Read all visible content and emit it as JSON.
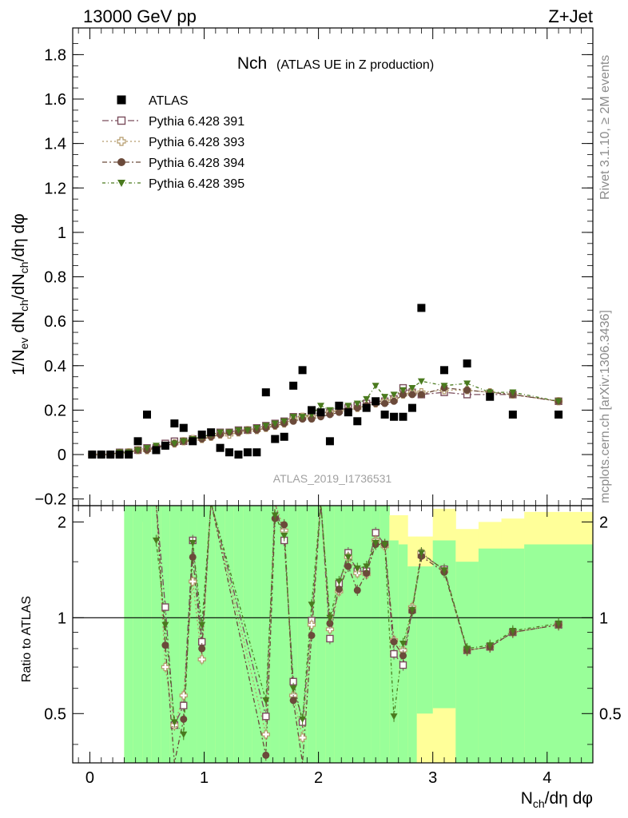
{
  "header": {
    "energy_label": "13000 GeV pp",
    "process_label": "Z+Jet"
  },
  "side_labels": {
    "rivet": "Rivet 3.1.10, ≥ 2M events",
    "mcplots": "mcplots.cern.ch [arXiv:1306.3436]"
  },
  "chart_data": [
    {
      "id": "main",
      "type": "scatter",
      "title_main": "Nch",
      "title_sub": "(ATLAS UE in Z production)",
      "watermark": "ATLAS_2019_I1736531",
      "ylabel": "1/N_ev dN_ch/dη dφ",
      "xlim": [
        -0.15,
        4.4
      ],
      "ylim": [
        -0.23,
        1.92
      ],
      "xticks": [
        0,
        1,
        2,
        3,
        4
      ],
      "yticks": [
        -0.2,
        0,
        0.2,
        0.4,
        0.6,
        0.8,
        1,
        1.2,
        1.4,
        1.6,
        1.8
      ],
      "ytick_labels": [
        "−0.2",
        "0",
        "0.2",
        "0.4",
        "0.6",
        "0.8",
        "1",
        "1.2",
        "1.4",
        "1.6",
        "1.8"
      ],
      "legend_position": "top-left",
      "series": [
        {
          "name": "ATLAS",
          "marker": "filled-square",
          "color": "#000000",
          "x": [
            0.02,
            0.1,
            0.18,
            0.26,
            0.34,
            0.42,
            0.5,
            0.58,
            0.66,
            0.74,
            0.82,
            0.9,
            0.98,
            1.06,
            1.14,
            1.22,
            1.3,
            1.38,
            1.46,
            1.54,
            1.62,
            1.7,
            1.78,
            1.86,
            1.94,
            2.02,
            2.1,
            2.18,
            2.26,
            2.34,
            2.42,
            2.5,
            2.58,
            2.66,
            2.74,
            2.82,
            2.9,
            3.1,
            3.3,
            3.5,
            3.7,
            4.1
          ],
          "y": [
            0.0,
            0.0,
            0.0,
            0.0,
            0.0,
            0.06,
            0.18,
            0.02,
            0.04,
            0.14,
            0.12,
            0.06,
            0.09,
            0.1,
            0.03,
            0.01,
            0.0,
            0.01,
            0.01,
            0.28,
            0.07,
            0.08,
            0.31,
            0.38,
            0.2,
            0.19,
            0.06,
            0.22,
            0.19,
            0.15,
            0.21,
            0.24,
            0.18,
            0.17,
            0.17,
            0.21,
            0.66,
            0.38,
            0.41,
            0.26,
            0.18,
            0.18
          ]
        },
        {
          "name": "Pythia 6.428 391",
          "marker": "open-square",
          "color": "#7a4d5c",
          "dash": "8,3,2,3",
          "x": [
            0.02,
            0.1,
            0.18,
            0.26,
            0.34,
            0.42,
            0.5,
            0.58,
            0.66,
            0.74,
            0.82,
            0.9,
            0.98,
            1.06,
            1.14,
            1.22,
            1.3,
            1.38,
            1.46,
            1.54,
            1.62,
            1.7,
            1.78,
            1.86,
            1.94,
            2.02,
            2.1,
            2.18,
            2.26,
            2.34,
            2.42,
            2.5,
            2.58,
            2.66,
            2.74,
            2.82,
            2.9,
            3.1,
            3.3,
            3.5,
            3.7,
            4.1
          ],
          "y": [
            0.0,
            0.0,
            0.0,
            0.01,
            0.01,
            0.02,
            0.03,
            0.03,
            0.05,
            0.06,
            0.06,
            0.07,
            0.08,
            0.09,
            0.1,
            0.1,
            0.11,
            0.11,
            0.12,
            0.13,
            0.14,
            0.15,
            0.17,
            0.17,
            0.18,
            0.19,
            0.19,
            0.2,
            0.21,
            0.22,
            0.23,
            0.24,
            0.24,
            0.25,
            0.3,
            0.28,
            0.27,
            0.28,
            0.27,
            0.27,
            0.27,
            0.24
          ]
        },
        {
          "name": "Pythia 6.428 393",
          "marker": "open-cross",
          "color": "#b39a6b",
          "dash": "2,3",
          "x": [
            0.02,
            0.1,
            0.18,
            0.26,
            0.34,
            0.42,
            0.5,
            0.58,
            0.66,
            0.74,
            0.82,
            0.9,
            0.98,
            1.06,
            1.14,
            1.22,
            1.3,
            1.38,
            1.46,
            1.54,
            1.62,
            1.7,
            1.78,
            1.86,
            1.94,
            2.02,
            2.1,
            2.18,
            2.26,
            2.34,
            2.42,
            2.5,
            2.58,
            2.66,
            2.74,
            2.82,
            2.9,
            3.1,
            3.3,
            3.5,
            3.7,
            4.1
          ],
          "y": [
            0.0,
            0.0,
            0.0,
            0.0,
            0.01,
            0.02,
            0.02,
            0.03,
            0.04,
            0.05,
            0.06,
            0.07,
            0.07,
            0.08,
            0.09,
            0.09,
            0.1,
            0.11,
            0.11,
            0.12,
            0.13,
            0.14,
            0.16,
            0.17,
            0.17,
            0.18,
            0.19,
            0.2,
            0.2,
            0.21,
            0.22,
            0.23,
            0.24,
            0.25,
            0.27,
            0.28,
            0.28,
            0.29,
            0.29,
            0.28,
            0.27,
            0.24
          ]
        },
        {
          "name": "Pythia 6.428 394",
          "marker": "filled-circle",
          "color": "#6b4a3a",
          "dash": "6,3,2,3",
          "x": [
            0.02,
            0.1,
            0.18,
            0.26,
            0.34,
            0.42,
            0.5,
            0.58,
            0.66,
            0.74,
            0.82,
            0.9,
            0.98,
            1.06,
            1.14,
            1.22,
            1.3,
            1.38,
            1.46,
            1.54,
            1.62,
            1.7,
            1.78,
            1.86,
            1.94,
            2.02,
            2.1,
            2.18,
            2.26,
            2.34,
            2.42,
            2.5,
            2.58,
            2.66,
            2.74,
            2.82,
            2.9,
            3.1,
            3.3,
            3.5,
            3.7,
            4.1
          ],
          "y": [
            0.0,
            0.0,
            0.0,
            0.01,
            0.01,
            0.02,
            0.02,
            0.03,
            0.04,
            0.05,
            0.06,
            0.06,
            0.07,
            0.08,
            0.09,
            0.1,
            0.1,
            0.11,
            0.11,
            0.12,
            0.13,
            0.14,
            0.15,
            0.16,
            0.16,
            0.17,
            0.18,
            0.19,
            0.2,
            0.21,
            0.22,
            0.23,
            0.23,
            0.24,
            0.27,
            0.27,
            0.27,
            0.3,
            0.29,
            0.28,
            0.27,
            0.24
          ]
        },
        {
          "name": "Pythia 6.428 395",
          "marker": "filled-triangle-down",
          "color": "#4a7a1e",
          "dash": "4,3,1,3",
          "x": [
            0.02,
            0.1,
            0.18,
            0.26,
            0.34,
            0.42,
            0.5,
            0.58,
            0.66,
            0.74,
            0.82,
            0.9,
            0.98,
            1.06,
            1.14,
            1.22,
            1.3,
            1.38,
            1.46,
            1.54,
            1.62,
            1.7,
            1.78,
            1.86,
            1.94,
            2.02,
            2.1,
            2.18,
            2.26,
            2.34,
            2.42,
            2.5,
            2.58,
            2.66,
            2.74,
            2.82,
            2.9,
            3.1,
            3.3,
            3.5,
            3.7,
            4.1
          ],
          "y": [
            0.0,
            0.0,
            0.0,
            0.01,
            0.01,
            0.02,
            0.03,
            0.04,
            0.04,
            0.05,
            0.06,
            0.07,
            0.08,
            0.09,
            0.1,
            0.1,
            0.11,
            0.11,
            0.12,
            0.13,
            0.14,
            0.15,
            0.17,
            0.17,
            0.18,
            0.22,
            0.2,
            0.22,
            0.22,
            0.23,
            0.25,
            0.31,
            0.26,
            0.27,
            0.29,
            0.3,
            0.33,
            0.31,
            0.32,
            0.28,
            0.28,
            0.24
          ]
        }
      ]
    },
    {
      "id": "ratio",
      "type": "line",
      "ylabel": "Ratio to ATLAS",
      "xlabel": "N_ch/dη dφ",
      "xlim": [
        -0.15,
        4.4
      ],
      "ylim": [
        0.35,
        2.25
      ],
      "reference_line": 1,
      "yticks": [
        0.5,
        1,
        2
      ],
      "ytick_labels": [
        "0.5",
        "1",
        "2"
      ],
      "xticks": [
        0,
        1,
        2,
        3,
        4
      ],
      "xtick_labels": [
        "0",
        "1",
        "2",
        "3",
        "4"
      ],
      "bands": {
        "edges": [
          0.3,
          0.38,
          0.46,
          0.54,
          0.62,
          0.7,
          0.78,
          0.86,
          0.94,
          1.02,
          1.1,
          1.18,
          1.26,
          1.34,
          1.42,
          1.5,
          1.58,
          1.66,
          1.74,
          1.82,
          1.9,
          1.98,
          2.06,
          2.14,
          2.22,
          2.3,
          2.38,
          2.46,
          2.54,
          2.62,
          2.7,
          2.78,
          2.86,
          3.0,
          3.2,
          3.4,
          3.6,
          3.8,
          4.4
        ],
        "yellow_lo": [
          0.35,
          0.35,
          0.35,
          0.35,
          0.35,
          0.35,
          0.35,
          0.35,
          0.35,
          0.35,
          0.35,
          0.35,
          0.35,
          0.35,
          0.35,
          0.35,
          0.35,
          0.35,
          0.35,
          0.35,
          0.35,
          0.35,
          0.35,
          0.35,
          0.35,
          0.35,
          0.35,
          0.35,
          0.35,
          0.35,
          0.35,
          0.35,
          0.35,
          0.35,
          0.35,
          0.35,
          0.35,
          0.35
        ],
        "yellow_hi": [
          2.05,
          2.25,
          2.0,
          2.25,
          2.25,
          2.25,
          2.05,
          2.25,
          2.25,
          2.1,
          2.25,
          2.25,
          2.25,
          2.25,
          2.25,
          2.25,
          2.25,
          2.25,
          2.25,
          2.25,
          2.25,
          2.25,
          2.25,
          2.25,
          2.25,
          2.25,
          2.25,
          2.25,
          2.25,
          2.1,
          2.1,
          1.8,
          1.8,
          2.2,
          1.9,
          2.0,
          2.05,
          2.15
        ],
        "green_lo": [
          0.35,
          0.35,
          0.35,
          0.35,
          0.35,
          0.35,
          0.35,
          0.35,
          0.35,
          0.35,
          0.35,
          0.35,
          0.35,
          0.35,
          0.35,
          0.35,
          0.35,
          0.35,
          0.35,
          0.35,
          0.35,
          0.35,
          0.35,
          0.35,
          0.35,
          0.35,
          0.35,
          0.35,
          0.35,
          0.35,
          0.35,
          0.35,
          0.5,
          0.52,
          0.35,
          0.35,
          0.35,
          0.35
        ],
        "green_hi": [
          2.25,
          2.25,
          2.25,
          2.25,
          2.25,
          2.25,
          2.25,
          2.25,
          2.25,
          2.25,
          2.25,
          2.25,
          2.25,
          2.25,
          2.25,
          2.25,
          2.25,
          2.25,
          2.25,
          2.25,
          2.25,
          2.25,
          2.25,
          2.25,
          2.25,
          2.25,
          2.25,
          2.25,
          2.25,
          1.75,
          1.7,
          1.45,
          1.45,
          1.75,
          1.5,
          1.65,
          1.65,
          1.7
        ]
      },
      "series": [
        {
          "name": "Pythia 6.428 391",
          "x": [
            0.58,
            0.66,
            0.74,
            0.82,
            0.9,
            0.98,
            1.06,
            1.54,
            1.62,
            1.7,
            1.78,
            1.86,
            1.94,
            2.02,
            2.1,
            2.18,
            2.26,
            2.34,
            2.42,
            2.5,
            2.58,
            2.66,
            2.74,
            2.82,
            2.9,
            3.1,
            3.3,
            3.5,
            3.7,
            4.1
          ],
          "y": [
            2.3,
            1.08,
            0.46,
            0.53,
            1.75,
            0.84,
            2.3,
            0.49,
            2.3,
            1.75,
            0.63,
            0.47,
            0.98,
            2.3,
            0.86,
            1.28,
            1.6,
            1.4,
            1.4,
            1.85,
            1.7,
            0.77,
            0.71,
            1.06,
            1.58,
            1.42,
            0.79,
            0.81,
            0.9,
            0.95
          ]
        },
        {
          "name": "Pythia 6.428 393",
          "x": [
            0.58,
            0.66,
            0.74,
            0.82,
            0.9,
            0.98,
            1.06,
            1.54,
            1.62,
            1.7,
            1.78,
            1.86,
            1.94,
            2.02,
            2.1,
            2.18,
            2.26,
            2.34,
            2.42,
            2.5,
            2.58,
            2.66,
            2.74,
            2.82,
            2.9,
            3.1,
            3.3,
            3.5,
            3.7,
            4.1
          ],
          "y": [
            2.3,
            0.7,
            0.46,
            0.57,
            1.3,
            0.74,
            2.3,
            0.43,
            2.3,
            1.88,
            0.57,
            0.42,
            0.95,
            2.3,
            0.92,
            1.21,
            1.55,
            1.38,
            1.37,
            1.75,
            1.68,
            0.85,
            0.79,
            1.08,
            1.6,
            1.4,
            0.79,
            0.81,
            0.9,
            0.95
          ]
        },
        {
          "name": "Pythia 6.428 394",
          "x": [
            0.58,
            0.66,
            0.74,
            0.82,
            0.9,
            0.98,
            1.06,
            1.54,
            1.62,
            1.7,
            1.78,
            1.86,
            1.94,
            2.02,
            2.1,
            2.18,
            2.26,
            2.34,
            2.42,
            2.5,
            2.58,
            2.66,
            2.74,
            2.82,
            2.9,
            3.1,
            3.3,
            3.5,
            3.7,
            4.1
          ],
          "y": [
            2.3,
            0.82,
            0.35,
            0.48,
            1.55,
            0.8,
            2.3,
            0.37,
            2.05,
            1.96,
            0.55,
            0.35,
            0.88,
            2.3,
            0.96,
            1.23,
            1.45,
            1.22,
            1.38,
            1.7,
            1.7,
            0.84,
            0.76,
            1.05,
            1.56,
            1.39,
            0.79,
            0.81,
            0.9,
            0.95
          ]
        },
        {
          "name": "Pythia 6.428 395",
          "x": [
            0.58,
            0.66,
            0.74,
            0.82,
            0.9,
            0.98,
            1.06,
            1.54,
            1.62,
            1.7,
            1.78,
            1.86,
            1.94,
            2.02,
            2.1,
            2.18,
            2.26,
            2.34,
            2.42,
            2.5,
            2.58,
            2.66,
            2.74,
            2.82,
            2.9,
            3.1,
            3.3,
            3.5,
            3.7,
            4.1
          ],
          "y": [
            1.75,
            0.95,
            0.47,
            0.43,
            1.72,
            0.95,
            2.3,
            0.55,
            2.1,
            1.81,
            0.6,
            0.48,
            1.1,
            2.3,
            1.0,
            1.3,
            1.55,
            1.43,
            1.45,
            1.72,
            1.7,
            0.49,
            0.83,
            1.06,
            1.6,
            1.41,
            0.8,
            0.82,
            0.91,
            0.96
          ]
        }
      ]
    }
  ]
}
